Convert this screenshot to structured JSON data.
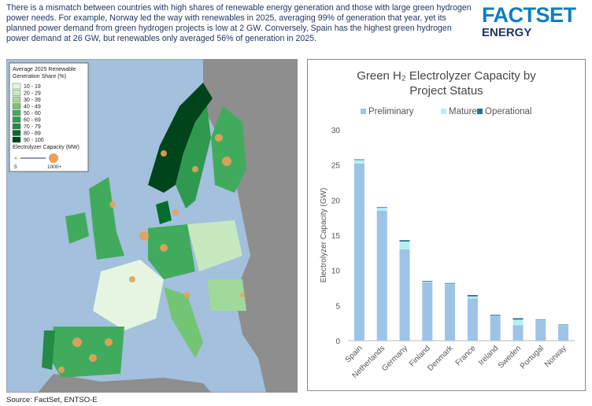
{
  "header": {
    "text": "There is a mismatch between countries with high shares of renewable energy generation and those with large green hydrogen power needs. For example, Norway led the way with renewables in 2025, averaging 99% of generation that year, yet its planned power demand from green hydrogen projects is low at 2 GW. Conversely, Spain has the highest green hydrogen power demand at 26 GW, but renewables only averaged 56% of generation in 2025.",
    "logo": "FACTSET",
    "logo_sub": "ENERGY"
  },
  "map_legend": {
    "title": "Average 2025 Renewable Generation Share (%)",
    "bins": [
      {
        "label": "10 - 19",
        "color": "#e5f5e0"
      },
      {
        "label": "20 - 29",
        "color": "#c7e9c0"
      },
      {
        "label": "30 - 39",
        "color": "#a1d99b"
      },
      {
        "label": "40 - 49",
        "color": "#74c476"
      },
      {
        "label": "50 - 60",
        "color": "#41ab5d"
      },
      {
        "label": "60 - 69",
        "color": "#2f9a4f"
      },
      {
        "label": "70 - 79",
        "color": "#238b45"
      },
      {
        "label": "80 - 89",
        "color": "#006d2c"
      },
      {
        "label": "90 - 100",
        "color": "#00441b"
      }
    ],
    "size_title": "Electrolyzer Capacity (MW)",
    "size_min": "5",
    "size_max": "1000+"
  },
  "source": "Source: FactSet, ENTSO-E",
  "chart_data": {
    "type": "bar",
    "stacked": true,
    "title": [
      "Green H₂ Electrolyzer Capacity by",
      "Project Status"
    ],
    "y_label": "Electrolyzer Capacity (GW)",
    "categories": [
      "Spain",
      "Netherlands",
      "Germany",
      "Finland",
      "Denmark",
      "France",
      "Ireland",
      "Sweden",
      "Portugal",
      "Norway"
    ],
    "series": [
      {
        "name": "Preliminary",
        "color": "#9dc3e6",
        "values": [
          25.2,
          18.5,
          13.0,
          8.3,
          8.0,
          6.0,
          3.6,
          2.2,
          2.8,
          2.1
        ]
      },
      {
        "name": "Mature",
        "color": "#b4f0f8",
        "values": [
          0.5,
          0.4,
          1.1,
          0.1,
          0.1,
          0.3,
          0,
          0.8,
          0.1,
          0.1
        ]
      },
      {
        "name": "Operational",
        "color": "#2e6f8e",
        "values": [
          0.1,
          0.1,
          0.2,
          0.1,
          0.1,
          0.2,
          0.1,
          0.2,
          0.1,
          0.1
        ]
      }
    ],
    "ylim": [
      0,
      30
    ],
    "yticks": [
      0,
      5,
      10,
      15,
      20,
      25,
      30
    ],
    "legend": "top"
  }
}
